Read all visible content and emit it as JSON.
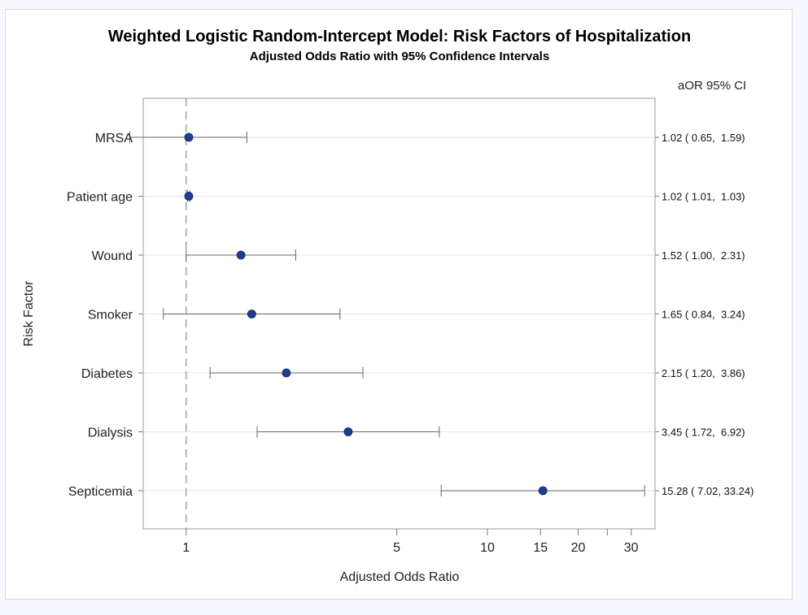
{
  "chart_data": {
    "type": "forest",
    "title": "Weighted Logistic Random-Intercept Model: Risk Factors of Hospitalization",
    "subtitle": "Adjusted Odds Ratio with 95% Confidence Intervals",
    "xlabel": "Adjusted Odds Ratio",
    "ylabel": "Risk Factor",
    "x_scale": "log",
    "xlim": [
      0.72,
      36
    ],
    "reference_line": 1,
    "x_ticks": [
      1,
      5,
      10,
      15,
      20,
      25,
      30
    ],
    "x_tick_labels": [
      "1",
      "5",
      "10",
      "15",
      "20",
      "",
      "30"
    ],
    "right_header": "aOR 95% CI",
    "marker_color": "#1f3c91",
    "rows": [
      {
        "label": "MRSA",
        "or": 1.02,
        "lower": 0.65,
        "upper": 1.59,
        "text": "1.02 ( 0.65,  1.59)"
      },
      {
        "label": "Patient age",
        "or": 1.02,
        "lower": 1.01,
        "upper": 1.03,
        "text": "1.02 ( 1.01,  1.03)"
      },
      {
        "label": "Wound",
        "or": 1.52,
        "lower": 1.0,
        "upper": 2.31,
        "text": "1.52 ( 1.00,  2.31)"
      },
      {
        "label": "Smoker",
        "or": 1.65,
        "lower": 0.84,
        "upper": 3.24,
        "text": "1.65 ( 0.84,  3.24)"
      },
      {
        "label": "Diabetes",
        "or": 2.15,
        "lower": 1.2,
        "upper": 3.86,
        "text": "2.15 ( 1.20,  3.86)"
      },
      {
        "label": "Dialysis",
        "or": 3.45,
        "lower": 1.72,
        "upper": 6.92,
        "text": "3.45 ( 1.72,  6.92)"
      },
      {
        "label": "Septicemia",
        "or": 15.28,
        "lower": 7.02,
        "upper": 33.24,
        "text": "15.28 ( 7.02, 33.24)"
      }
    ]
  }
}
